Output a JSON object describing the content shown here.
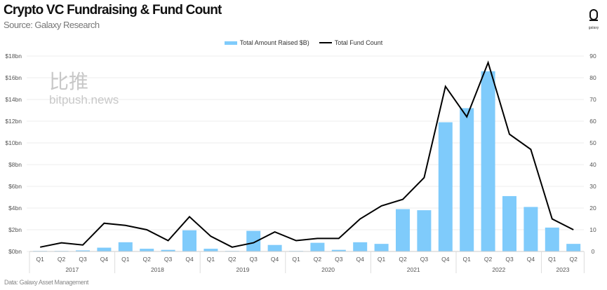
{
  "header": {
    "title": "Crypto VC Fundraising & Fund Count",
    "subtitle": "Source: Galaxy Research",
    "logo_text": "galaxy"
  },
  "footer": {
    "source": "Data: Galaxy Asset Management"
  },
  "watermark": {
    "cn": "比推",
    "en": "bitpush.news"
  },
  "chart_data": {
    "type": "bar+line",
    "title": "Crypto VC Fundraising & Fund Count",
    "legend_position": "top",
    "grid": true,
    "categories": [
      "Q1",
      "Q2",
      "Q3",
      "Q4",
      "Q1",
      "Q2",
      "Q3",
      "Q4",
      "Q1",
      "Q2",
      "Q3",
      "Q4",
      "Q1",
      "Q2",
      "Q3",
      "Q4",
      "Q1",
      "Q2",
      "Q3",
      "Q4",
      "Q1",
      "Q2",
      "Q3",
      "Q4",
      "Q1",
      "Q2"
    ],
    "years": [
      "2017",
      "2018",
      "2019",
      "2020",
      "2021",
      "2022",
      "2023"
    ],
    "left_axis": {
      "ylim": [
        0,
        18
      ],
      "ticks": [
        "$0bn",
        "$2bn",
        "$4bn",
        "$6bn",
        "$8bn",
        "$10bn",
        "$12bn",
        "$14bn",
        "$16bn",
        "$18bn"
      ]
    },
    "right_axis": {
      "ylim": [
        0,
        90
      ],
      "ticks": [
        "0",
        "10",
        "20",
        "30",
        "40",
        "50",
        "60",
        "70",
        "80",
        "90"
      ]
    },
    "series": [
      {
        "name": "Total Amount Raised $B)",
        "type": "bar",
        "axis": "left",
        "color": "#7fcbfb",
        "values": [
          0.05,
          0.05,
          0.1,
          0.35,
          0.85,
          0.25,
          0.15,
          1.95,
          0.25,
          0.05,
          1.9,
          0.6,
          0.05,
          0.8,
          0.15,
          0.85,
          0.7,
          3.9,
          3.8,
          11.9,
          13.2,
          16.6,
          5.1,
          4.1,
          2.2,
          0.7
        ]
      },
      {
        "name": "Total Fund Count",
        "type": "line",
        "axis": "right",
        "color": "#000000",
        "values": [
          2,
          4,
          3,
          13,
          12,
          10,
          5,
          16,
          7,
          2,
          4,
          9,
          5,
          6,
          6,
          15,
          21,
          24,
          34,
          76,
          62,
          87,
          54,
          47,
          15,
          10
        ]
      }
    ]
  }
}
